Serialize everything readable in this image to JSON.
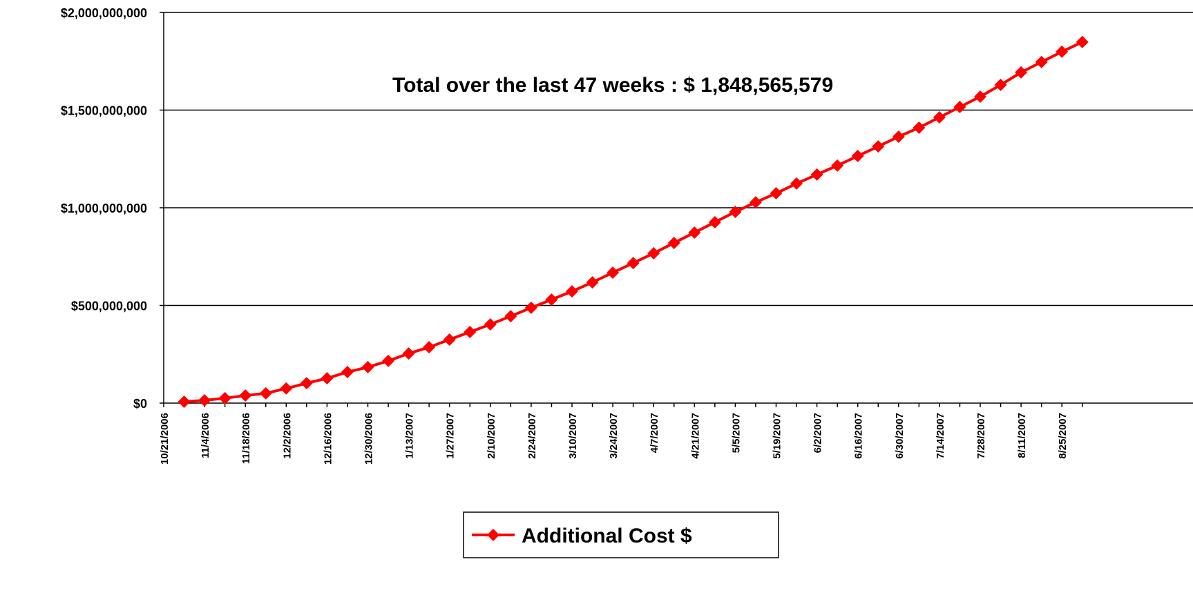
{
  "chart_data": {
    "type": "line",
    "annotation": "Total over the last 47 weeks : $ 1,848,565,579",
    "categories": [
      "10/21/2006",
      null,
      "11/4/2006",
      null,
      "11/18/2006",
      null,
      "12/2/2006",
      null,
      "12/16/2006",
      null,
      "12/30/2006",
      null,
      "1/13/2007",
      null,
      "1/27/2007",
      null,
      "2/10/2007",
      null,
      "2/24/2007",
      null,
      "3/10/2007",
      null,
      "3/24/2007",
      null,
      "4/7/2007",
      null,
      "4/21/2007",
      null,
      "5/5/2007",
      null,
      "5/19/2007",
      null,
      "6/2/2007",
      null,
      "6/16/2007",
      null,
      "6/30/2007",
      null,
      "7/14/2007",
      null,
      "7/28/2007",
      null,
      "8/11/2007",
      null,
      "8/25/2007",
      null
    ],
    "series": [
      {
        "name": "Additional Cost $",
        "color": "#ff0000",
        "values": [
          null,
          7000000,
          14000000,
          25000000,
          39000000,
          50000000,
          75000000,
          102000000,
          127000000,
          159000000,
          184000000,
          216000000,
          254000000,
          286000000,
          325000000,
          364000000,
          403000000,
          445000000,
          488000000,
          530000000,
          572000000,
          618000000,
          668000000,
          717000000,
          767000000,
          820000000,
          873000000,
          926000000,
          979000000,
          1028000000,
          1074000000,
          1124000000,
          1170000000,
          1216000000,
          1265000000,
          1314000000,
          1364000000,
          1410000000,
          1463000000,
          1516000000,
          1569000000,
          1629000000,
          1693000000,
          1746000000,
          1799000000,
          1848565579
        ]
      }
    ],
    "ylim": [
      0,
      2000000000
    ],
    "yticks": [
      {
        "value": 0,
        "label": "$0"
      },
      {
        "value": 500000000,
        "label": "$500,000,000"
      },
      {
        "value": 1000000000,
        "label": "$1,000,000,000"
      },
      {
        "value": 1500000000,
        "label": "$1,500,000,000"
      },
      {
        "value": 2000000000,
        "label": "$2,000,000,000"
      }
    ],
    "grid": true,
    "legend": "bottom"
  }
}
